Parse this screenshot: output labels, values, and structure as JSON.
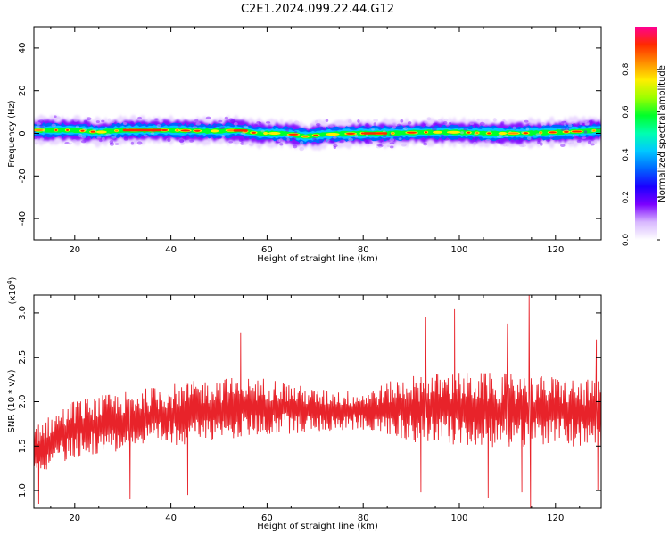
{
  "title": "C2E1.2024.099.22.44.G12",
  "colors": {
    "snr_line": "#e8232a",
    "axis": "#000000",
    "colormap": [
      "#ffffff",
      "#d8b8ff",
      "#7b00ff",
      "#1a00ff",
      "#0066ff",
      "#00c8ff",
      "#00ffb0",
      "#00ff2a",
      "#9cff00",
      "#ffee00",
      "#ff8c00",
      "#ff2a00",
      "#ff0090"
    ]
  },
  "chart_data": [
    {
      "type": "heatmap",
      "xlabel": "Height of straight line (km)",
      "ylabel": "Frequency (Hz)",
      "xlim": [
        11.5,
        129.5
      ],
      "ylim": [
        -50,
        50
      ],
      "x_ticks": [
        20,
        40,
        60,
        80,
        100,
        120
      ],
      "y_ticks": [
        -40,
        -20,
        0,
        20,
        40
      ],
      "grid": false,
      "colorbar": {
        "label": "Normalized spectral amplitude",
        "range": [
          0.0,
          1.0
        ],
        "ticks": [
          "0.0",
          "0.2",
          "0.4",
          "0.6",
          "0.8"
        ]
      },
      "ridge": [
        {
          "x": 12,
          "freq": 1.5
        },
        {
          "x": 20,
          "freq": 1.5
        },
        {
          "x": 25,
          "freq": 0.5
        },
        {
          "x": 30,
          "freq": 1.5
        },
        {
          "x": 40,
          "freq": 1.5
        },
        {
          "x": 48,
          "freq": 1.0
        },
        {
          "x": 54,
          "freq": 1.5
        },
        {
          "x": 58,
          "freq": 0.0
        },
        {
          "x": 64,
          "freq": 0.0
        },
        {
          "x": 68,
          "freq": -1.5
        },
        {
          "x": 72,
          "freq": -0.5
        },
        {
          "x": 80,
          "freq": 0.0
        },
        {
          "x": 86,
          "freq": 0.0
        },
        {
          "x": 92,
          "freq": 0.5
        },
        {
          "x": 100,
          "freq": 0.5
        },
        {
          "x": 106,
          "freq": 0.0
        },
        {
          "x": 112,
          "freq": 0.0
        },
        {
          "x": 120,
          "freq": 0.5
        },
        {
          "x": 126,
          "freq": 1.0
        },
        {
          "x": 129.5,
          "freq": 1.5
        }
      ]
    },
    {
      "type": "line",
      "xlabel": "Height of straight line (km)",
      "ylabel": "SNR (10 * v/v)",
      "y_multiplier": "(x10",
      "y_multiplier_exp": "4",
      "y_multiplier_close": ")",
      "xlim": [
        11.5,
        129.5
      ],
      "ylim": [
        0.8,
        3.2
      ],
      "x_ticks": [
        20,
        40,
        60,
        80,
        100,
        120
      ],
      "y_ticks": [
        "1.0",
        "1.5",
        "2.0",
        "2.5",
        "3.0"
      ],
      "grid": false,
      "envelope": {
        "x": [
          11.5,
          20,
          30,
          40,
          50,
          60,
          70,
          80,
          90,
          100,
          110,
          120,
          129.5
        ],
        "mean": [
          1.45,
          1.7,
          1.78,
          1.85,
          1.92,
          1.95,
          1.9,
          1.9,
          1.93,
          1.92,
          1.9,
          1.9,
          1.85
        ],
        "spread": [
          0.25,
          0.3,
          0.3,
          0.32,
          0.32,
          0.3,
          0.22,
          0.2,
          0.35,
          0.38,
          0.38,
          0.35,
          0.35
        ]
      },
      "spikes": [
        {
          "x": 12.5,
          "y": 0.85
        },
        {
          "x": 31.5,
          "y": 0.9
        },
        {
          "x": 43.5,
          "y": 0.95
        },
        {
          "x": 54.5,
          "y": 2.78
        },
        {
          "x": 92,
          "y": 0.98
        },
        {
          "x": 93,
          "y": 2.95
        },
        {
          "x": 99,
          "y": 3.05
        },
        {
          "x": 106,
          "y": 0.92
        },
        {
          "x": 110,
          "y": 2.88
        },
        {
          "x": 113,
          "y": 0.98
        },
        {
          "x": 114.5,
          "y": 3.2
        },
        {
          "x": 114.8,
          "y": 0.8
        },
        {
          "x": 128.5,
          "y": 2.7
        },
        {
          "x": 128.8,
          "y": 1.0
        }
      ]
    }
  ]
}
